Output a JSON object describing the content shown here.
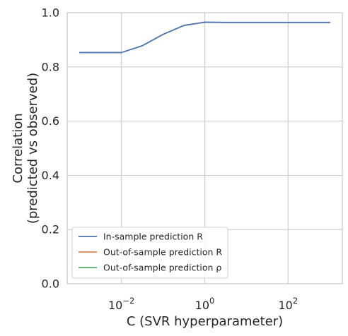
{
  "chart_data": {
    "type": "line",
    "xscale": "log",
    "xlim": [
      0.0005,
      2000
    ],
    "ylim": [
      0.0,
      1.0
    ],
    "xlabel": "C (SVR hyperparameter)",
    "ylabel_lines": [
      "Correlation",
      "(predicted vs observed)"
    ],
    "x_ticks": [
      {
        "value": 0.01,
        "base": "10",
        "exp": "−2"
      },
      {
        "value": 1,
        "base": "10",
        "exp": "0"
      },
      {
        "value": 100,
        "base": "10",
        "exp": "2"
      }
    ],
    "y_ticks": [
      "0.0",
      "0.2",
      "0.4",
      "0.6",
      "0.8",
      "1.0"
    ],
    "grid": true,
    "legend": {
      "placement": "lower-left"
    },
    "series": [
      {
        "name": "In-sample prediction R",
        "color": "#4c72b0",
        "x": [
          0.001,
          0.00316,
          0.01,
          0.0316,
          0.1,
          0.316,
          1,
          3.16,
          10,
          31.6,
          100,
          316,
          1000
        ],
        "y": [
          0.853,
          0.853,
          0.853,
          0.878,
          0.92,
          0.953,
          0.965,
          0.964,
          0.964,
          0.964,
          0.964,
          0.964,
          0.964
        ]
      },
      {
        "name": "Out-of-sample prediction R",
        "color": "#dd8452",
        "x": [],
        "y": []
      },
      {
        "name": "Out-of-sample prediction ρ",
        "color": "#55a868",
        "x": [],
        "y": []
      }
    ]
  }
}
